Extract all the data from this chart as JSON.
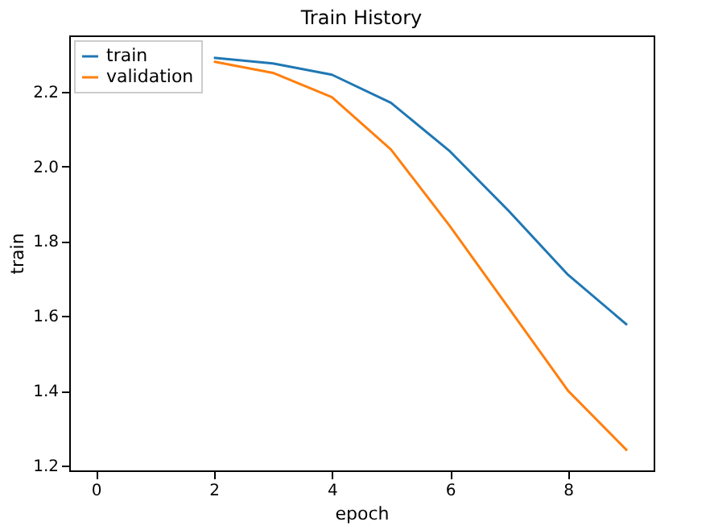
{
  "chart_data": {
    "type": "line",
    "title": "Train History",
    "xlabel": "epoch",
    "ylabel": "train",
    "x": [
      2,
      3,
      4,
      5,
      6,
      7,
      8,
      9
    ],
    "series": [
      {
        "name": "train",
        "color": "#1f77b4",
        "values": [
          2.29,
          2.275,
          2.245,
          2.17,
          2.04,
          1.88,
          1.71,
          1.576
        ]
      },
      {
        "name": "validation",
        "color": "#ff7f0e",
        "values": [
          2.28,
          2.25,
          2.185,
          2.045,
          1.84,
          1.62,
          1.4,
          1.24
        ]
      }
    ],
    "xlim": [
      -0.45,
      9.45
    ],
    "xticks": [
      0,
      2,
      4,
      6,
      8
    ],
    "ylim": [
      1.187,
      2.35
    ],
    "yticks": [
      1.2,
      1.4,
      1.6,
      1.8,
      {
        "value": 2,
        "label": "2.0"
      },
      2.2
    ],
    "grid": false,
    "legend": "top left",
    "marker": "none",
    "line_style": "solid"
  }
}
